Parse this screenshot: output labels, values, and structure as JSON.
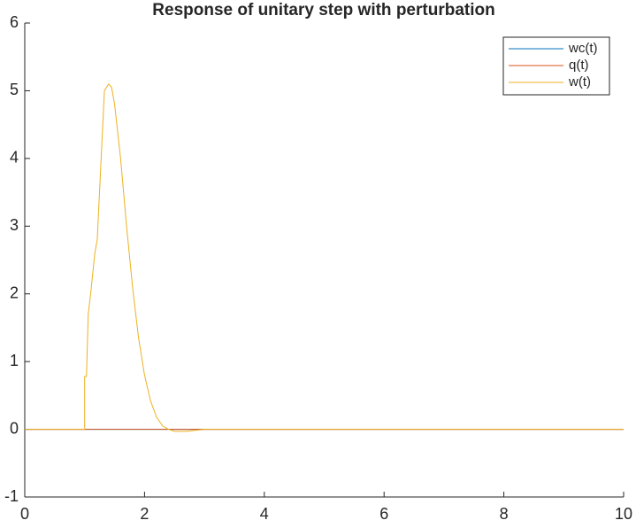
{
  "chart_data": {
    "type": "line",
    "title": "Response of unitary step with perturbation",
    "x": [
      0,
      1,
      1,
      1.03,
      1.06,
      1.1,
      1.17,
      1.21,
      1.27,
      1.33,
      1.4,
      1.45,
      1.5,
      1.6,
      1.7,
      1.8,
      1.9,
      2,
      2.1,
      2.2,
      2.3,
      2.4,
      2.5,
      2.7,
      3,
      10
    ],
    "series": [
      {
        "name": "wc(t)",
        "color": "#0072bd",
        "values": [
          0,
          0,
          0,
          0,
          0,
          0,
          0,
          0,
          0,
          0,
          0,
          0,
          0,
          0,
          0,
          0,
          0,
          0,
          0,
          0,
          0,
          0,
          0,
          0,
          0,
          0
        ]
      },
      {
        "name": "q(t)",
        "color": "#d95319",
        "values": [
          0,
          0,
          0,
          0,
          0,
          0,
          0,
          0,
          0,
          0,
          0,
          0,
          0,
          0,
          0,
          0,
          0,
          0,
          0,
          0,
          0,
          0,
          0,
          0,
          0,
          0
        ]
      },
      {
        "name": "w(t)",
        "color": "#edb120",
        "values": [
          0,
          0,
          0.78,
          0.78,
          1.7,
          2.0,
          2.6,
          2.8,
          3.9,
          5.0,
          5.1,
          5.05,
          4.8,
          4.0,
          3.0,
          2.1,
          1.35,
          0.8,
          0.42,
          0.18,
          0.05,
          0,
          -0.03,
          -0.03,
          0,
          0
        ]
      }
    ],
    "xlim": [
      0,
      10
    ],
    "xticks": [
      0,
      2,
      4,
      6,
      8,
      10
    ],
    "ylim": [
      -1,
      6
    ],
    "yticks": [
      -1,
      0,
      1,
      2,
      3,
      4,
      5,
      6
    ],
    "legend": "upper right",
    "grid": false
  }
}
